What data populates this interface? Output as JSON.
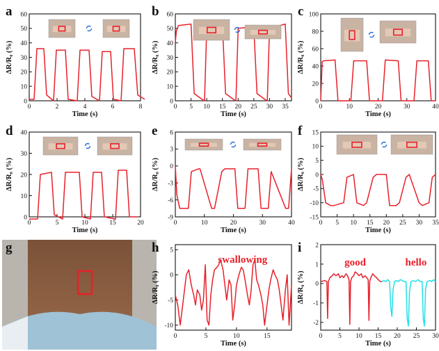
{
  "colors": {
    "trace": "#e8202a",
    "cyan": "#22e0e8",
    "axis": "#111111",
    "marker": "#e8202a"
  },
  "chart_data": [
    {
      "id": "a",
      "type": "line",
      "panel_label": "a",
      "xlabel": "Time (s)",
      "ylabel": "ΔR/R₀ (%)",
      "xlim": [
        0,
        8
      ],
      "ylim": [
        0,
        60
      ],
      "x_ticks": [
        "0",
        "2",
        "4",
        "6",
        "8"
      ],
      "y_ticks": [
        "0",
        "10",
        "20",
        "30",
        "40",
        "50",
        "60"
      ],
      "series": [
        {
          "color": "#e8202a",
          "x": [
            0,
            0.35,
            0.55,
            1.05,
            1.25,
            1.75,
            1.95,
            2.6,
            2.8,
            3.45,
            3.65,
            4.3,
            4.5,
            5.05,
            5.25,
            5.85,
            6.05,
            6.6,
            6.8,
            7.55,
            7.8,
            8.3
          ],
          "y": [
            1,
            1,
            36,
            36,
            4,
            0,
            35,
            35,
            1,
            0,
            35,
            35,
            3,
            0,
            34,
            34,
            1,
            0,
            36,
            36,
            4,
            1
          ]
        }
      ],
      "icons": [
        "finger-straight-photo",
        "finger-bent-photo"
      ]
    },
    {
      "id": "b",
      "type": "line",
      "panel_label": "b",
      "xlabel": "Time (s)",
      "ylabel": "ΔR/R₀ (%)",
      "xlim": [
        0,
        37
      ],
      "ylim": [
        0,
        60
      ],
      "x_ticks": [
        "0",
        "5",
        "10",
        "15",
        "20",
        "25",
        "30",
        "35"
      ],
      "y_ticks": [
        "0",
        "10",
        "20",
        "30",
        "40",
        "50",
        "60"
      ],
      "series": [
        {
          "color": "#e8202a",
          "x": [
            0,
            0.3,
            1,
            5,
            6,
            8.5,
            9.3,
            10,
            15,
            16,
            18.5,
            19.3,
            20,
            25,
            26,
            28.5,
            29.3,
            30,
            35,
            36,
            37
          ],
          "y": [
            40,
            48,
            52,
            53,
            5,
            1,
            0,
            50,
            52,
            5,
            1,
            0,
            50,
            51,
            5,
            1,
            0,
            50,
            53,
            5,
            2
          ]
        }
      ],
      "icons": [
        "knee-bent-photo",
        "leg-straight-photo"
      ]
    },
    {
      "id": "c",
      "type": "line",
      "panel_label": "c",
      "xlabel": "Time (s)",
      "ylabel": "ΔR/R₀ (%)",
      "xlim": [
        0,
        40
      ],
      "ylim": [
        0,
        100
      ],
      "x_ticks": [
        "0",
        "10",
        "20",
        "30",
        "40"
      ],
      "y_ticks": [
        "0",
        "20",
        "40",
        "60",
        "80",
        "100"
      ],
      "series": [
        {
          "color": "#e8202a",
          "x": [
            0,
            0.5,
            1,
            5,
            6,
            10.5,
            11.5,
            16,
            17,
            21.5,
            22.5,
            27,
            28,
            32.5,
            33.5,
            37.5,
            38.5,
            40
          ],
          "y": [
            0,
            45,
            46,
            47,
            0,
            0,
            46,
            46,
            0,
            0,
            47,
            46,
            0,
            0,
            46,
            46,
            0,
            0
          ]
        }
      ],
      "icons": [
        "elbow-straight-photo",
        "elbow-bent-photo"
      ]
    },
    {
      "id": "d",
      "type": "line",
      "panel_label": "d",
      "xlabel": "Time (s)",
      "ylabel": "ΔR/R₀ (%)",
      "xlim": [
        0,
        20
      ],
      "ylim": [
        0,
        40
      ],
      "x_ticks": [
        "0",
        "5",
        "10",
        "15",
        "20"
      ],
      "y_ticks": [
        "0",
        "10",
        "20",
        "30",
        "40"
      ],
      "series": [
        {
          "color": "#e8202a",
          "x": [
            0,
            1.5,
            2,
            4,
            4.5,
            6,
            6.5,
            9,
            9.5,
            11,
            11.5,
            13,
            13.5,
            15.5,
            16,
            17.5,
            18,
            19.5
          ],
          "y": [
            -1,
            -1,
            20,
            21,
            1,
            -1,
            21,
            21,
            0,
            -1,
            21,
            21,
            0,
            -1,
            22,
            22,
            0,
            0
          ]
        }
      ],
      "icons": [
        "wrist-straight-photo",
        "wrist-bent-photo"
      ]
    },
    {
      "id": "e",
      "type": "line",
      "panel_label": "e",
      "xlabel": "Time (s)",
      "ylabel": "ΔR/R₀ (%)",
      "xlim": [
        0,
        40
      ],
      "ylim": [
        -9,
        6
      ],
      "x_ticks": [
        "0",
        "10",
        "20",
        "30",
        "40"
      ],
      "y_ticks": [
        "-9",
        "-6",
        "-3",
        "0",
        "3",
        "6"
      ],
      "series": [
        {
          "color": "#e8202a",
          "x": [
            0,
            0.5,
            1.5,
            4.5,
            5.5,
            8,
            8.5,
            12.5,
            13.5,
            16,
            17,
            20.5,
            21.5,
            24,
            25,
            28.5,
            29.5,
            32,
            33,
            38,
            39,
            40
          ],
          "y": [
            0,
            -5,
            -7.5,
            -7.5,
            -1,
            -0.5,
            -0.5,
            -7.5,
            -7.5,
            -1,
            -0.5,
            -0.5,
            -7.5,
            -7.5,
            -0.5,
            -0.5,
            -7.5,
            -7.5,
            -1,
            -7.5,
            -7.5,
            -0.5
          ]
        }
      ],
      "icons": [
        "eyebrow-relaxed-photo",
        "eyebrow-frown-photo"
      ]
    },
    {
      "id": "f",
      "type": "line",
      "panel_label": "f",
      "xlabel": "Time (s)",
      "ylabel": "ΔR/R₀ (%)",
      "xlim": [
        0,
        35
      ],
      "ylim": [
        -15,
        15
      ],
      "x_ticks": [
        "0",
        "5",
        "10",
        "15",
        "20",
        "25",
        "30",
        "35"
      ],
      "y_ticks": [
        "-15",
        "-10",
        "-5",
        "0",
        "5",
        "10",
        "15"
      ],
      "series": [
        {
          "color": "#e8202a",
          "x": [
            0,
            0.5,
            1.5,
            3,
            4,
            7,
            8,
            10,
            11,
            13,
            14,
            16,
            17,
            20,
            21,
            23,
            24,
            26,
            27,
            30,
            31,
            33,
            34,
            35
          ],
          "y": [
            0,
            -2,
            -10,
            -11,
            -11,
            -10,
            -1,
            0,
            -10,
            -11,
            -10,
            -1,
            0,
            0,
            -11,
            -11,
            -10,
            -1,
            0,
            -10,
            -11,
            -10,
            -1,
            0
          ]
        }
      ],
      "icons": [
        "cheek-relaxed-photo",
        "cheek-puffed-photo"
      ]
    },
    {
      "id": "h",
      "type": "line",
      "panel_label": "h",
      "xlabel": "Time (s)",
      "ylabel": "ΔR/R₀ (%)",
      "xlim": [
        0,
        19
      ],
      "ylim": [
        -11,
        6
      ],
      "x_ticks": [
        "0",
        "5",
        "10",
        "15"
      ],
      "y_ticks": [
        "-10",
        "-5",
        "0",
        "5"
      ],
      "annotation": "swallowing",
      "series": [
        {
          "color": "#e8202a",
          "x": [
            0,
            0.4,
            0.8,
            1.1,
            1.5,
            1.8,
            2.2,
            2.6,
            3,
            3.3,
            3.6,
            4,
            4.3,
            4.6,
            4.9,
            5.2,
            5.5,
            5.8,
            6.1,
            6.4,
            6.8,
            7.1,
            7.4,
            7.8,
            8.1,
            8.4,
            8.8,
            9.1,
            9.4,
            9.7,
            10,
            10.4,
            10.8,
            11.1,
            11.4,
            11.8,
            12.1,
            12.4,
            12.7,
            13,
            13.3,
            13.6,
            14,
            14.3,
            14.6,
            15,
            15.3,
            15.6,
            16,
            16.3,
            16.7,
            17,
            17.3,
            17.6,
            18,
            18.3,
            18.6,
            19
          ],
          "y": [
            -4,
            -6,
            -10,
            -7,
            -3,
            0,
            1,
            -2,
            -4,
            -6,
            -3,
            -4,
            -7,
            -5,
            2,
            -9,
            -10,
            -4,
            -1,
            1,
            1.5,
            2,
            3,
            1,
            -2,
            -5,
            -1,
            -2,
            -9,
            -6,
            -2,
            0,
            1.5,
            1,
            -1,
            -4,
            -6,
            -3,
            2,
            3,
            -1,
            -2,
            -4,
            -6,
            -10,
            -6,
            -3,
            -1,
            1,
            0,
            -1,
            -3,
            -6,
            -9,
            -3,
            0,
            -10,
            -2
          ]
        }
      ]
    },
    {
      "id": "i",
      "type": "line",
      "panel_label": "i",
      "xlabel": "Time (s)",
      "ylabel": "ΔR/R₀ (%)",
      "xlim": [
        0,
        30
      ],
      "ylim": [
        -2.4,
        2
      ],
      "x_ticks": [
        "0",
        "5",
        "10",
        "15",
        "20",
        "25",
        "30"
      ],
      "y_ticks": [
        "-2",
        "-1",
        "0",
        "1",
        "2"
      ],
      "annotations": [
        "good",
        "hello"
      ],
      "series": [
        {
          "name": "good",
          "color": "#e8202a",
          "x": [
            0,
            1,
            1.6,
            1.8,
            2,
            2.4,
            3,
            3.4,
            4,
            4.6,
            5,
            5.6,
            6,
            6.6,
            7,
            7.4,
            7.6,
            7.8,
            8.1,
            8.6,
            9,
            9.6,
            10,
            10.6,
            11,
            11.6,
            12,
            12.4,
            12.6,
            12.8,
            13.1,
            13.6,
            14,
            14.6,
            15,
            15.6,
            16
          ],
          "y": [
            0.1,
            0.15,
            0.1,
            -1.8,
            0.1,
            0.3,
            0.4,
            0.5,
            0.4,
            0.5,
            0.3,
            0.4,
            0.3,
            0.5,
            0.4,
            0.2,
            -2.1,
            0.1,
            0.3,
            0.4,
            0.6,
            0.5,
            0.4,
            0.5,
            0.3,
            0.4,
            0.3,
            0.2,
            -1.9,
            0.1,
            0.3,
            0.5,
            0.4,
            0.3,
            0.2,
            0.1,
            0.1
          ]
        },
        {
          "name": "hello",
          "color": "#22e0e8",
          "x": [
            16,
            16.5,
            17,
            17.5,
            18,
            18.3,
            18.6,
            18.9,
            19.3,
            19.8,
            20.3,
            20.8,
            21.3,
            21.8,
            22.3,
            22.6,
            22.9,
            23.2,
            23.6,
            24.2,
            24.8,
            25.4,
            26,
            26.5,
            26.8,
            27.1,
            27.4,
            27.8,
            28.5,
            29,
            29.5,
            30
          ],
          "y": [
            0.1,
            0.15,
            0.1,
            0.2,
            0.1,
            -1.2,
            -1.7,
            -0.3,
            0.1,
            0.15,
            0.1,
            0.2,
            0.15,
            0.1,
            0.1,
            -1.8,
            -2.2,
            -0.4,
            0.1,
            0.15,
            0.1,
            0.2,
            0.1,
            0.1,
            -1.8,
            -2.2,
            -0.3,
            0.1,
            0.15,
            0.1,
            0.2,
            0.1
          ]
        }
      ]
    }
  ],
  "photo_g": {
    "panel_label": "g",
    "marker_color": "#e8202a"
  }
}
